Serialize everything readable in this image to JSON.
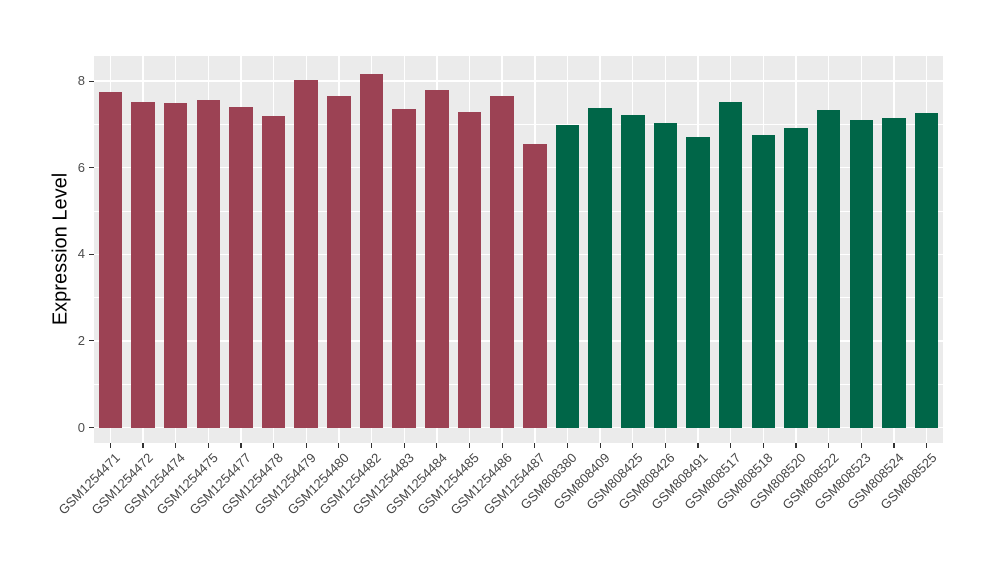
{
  "figure": {
    "background_color": "#FFFFFF",
    "panel_background_color": "#EBEBEB",
    "grid_color": "#FFFFFF",
    "axis_text_color": "#4D4D4D",
    "axis_title_color": "#000000"
  },
  "chart_data": {
    "type": "bar",
    "title": "",
    "xlabel": "",
    "ylabel": "Expression Level",
    "ylim": [
      0,
      8.58
    ],
    "yticks": [
      0,
      2,
      4,
      6,
      8
    ],
    "yticks_minor": [
      1,
      3,
      5,
      7
    ],
    "grid": true,
    "legend_position": "none",
    "group_colors": {
      "GSM1254-series": "#9C4254",
      "GSM808-series": "#006648"
    },
    "bars": [
      {
        "label": "GSM1254471",
        "value": 7.74,
        "group": "GSM1254-series"
      },
      {
        "label": "GSM1254472",
        "value": 7.52,
        "group": "GSM1254-series"
      },
      {
        "label": "GSM1254474",
        "value": 7.5,
        "group": "GSM1254-series"
      },
      {
        "label": "GSM1254475",
        "value": 7.57,
        "group": "GSM1254-series"
      },
      {
        "label": "GSM1254477",
        "value": 7.4,
        "group": "GSM1254-series"
      },
      {
        "label": "GSM1254478",
        "value": 7.19,
        "group": "GSM1254-series"
      },
      {
        "label": "GSM1254479",
        "value": 8.03,
        "group": "GSM1254-series"
      },
      {
        "label": "GSM1254480",
        "value": 7.66,
        "group": "GSM1254-series"
      },
      {
        "label": "GSM1254482",
        "value": 8.17,
        "group": "GSM1254-series"
      },
      {
        "label": "GSM1254483",
        "value": 7.36,
        "group": "GSM1254-series"
      },
      {
        "label": "GSM1254484",
        "value": 7.79,
        "group": "GSM1254-series"
      },
      {
        "label": "GSM1254485",
        "value": 7.29,
        "group": "GSM1254-series"
      },
      {
        "label": "GSM1254486",
        "value": 7.66,
        "group": "GSM1254-series"
      },
      {
        "label": "GSM1254487",
        "value": 6.54,
        "group": "GSM1254-series"
      },
      {
        "label": "GSM808380",
        "value": 6.98,
        "group": "GSM808-series"
      },
      {
        "label": "GSM808409",
        "value": 7.39,
        "group": "GSM808-series"
      },
      {
        "label": "GSM808425",
        "value": 7.22,
        "group": "GSM808-series"
      },
      {
        "label": "GSM808426",
        "value": 7.04,
        "group": "GSM808-series"
      },
      {
        "label": "GSM808491",
        "value": 6.71,
        "group": "GSM808-series"
      },
      {
        "label": "GSM808517",
        "value": 7.51,
        "group": "GSM808-series"
      },
      {
        "label": "GSM808518",
        "value": 6.75,
        "group": "GSM808-series"
      },
      {
        "label": "GSM808520",
        "value": 6.91,
        "group": "GSM808-series"
      },
      {
        "label": "GSM808522",
        "value": 7.33,
        "group": "GSM808-series"
      },
      {
        "label": "GSM808523",
        "value": 7.1,
        "group": "GSM808-series"
      },
      {
        "label": "GSM808524",
        "value": 7.15,
        "group": "GSM808-series"
      },
      {
        "label": "GSM808525",
        "value": 7.26,
        "group": "GSM808-series"
      }
    ]
  }
}
